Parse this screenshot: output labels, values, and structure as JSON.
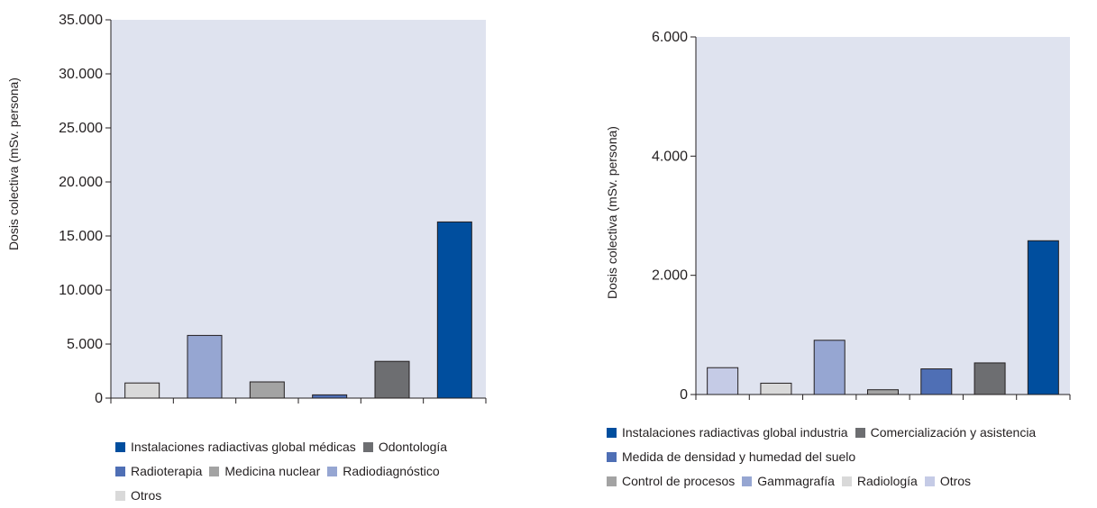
{
  "chart_data": [
    {
      "type": "bar",
      "ylabel": "Dosis colectiva (mSv. persona)",
      "ylim": [
        0,
        35000
      ],
      "y_ticks": [
        "0",
        "5.000",
        "10.000",
        "15.000",
        "20.000",
        "25.000",
        "30.000",
        "35.000"
      ],
      "plot_background": "#dfe3ef",
      "categories": [
        "Otros",
        "Radiodiagnóstico",
        "Medicina nuclear",
        "Radioterapia",
        "Odontología",
        "Instalaciones radiactivas global médicas"
      ],
      "values": [
        1400,
        5800,
        1500,
        300,
        3400,
        16300
      ],
      "colors": [
        "#d9d9d9",
        "#96a6d2",
        "#a3a3a3",
        "#4f6fb5",
        "#6d6e71",
        "#004e9e"
      ],
      "legend": [
        [
          "Instalaciones radiactivas global médicas",
          "Odontología"
        ],
        [
          "Radioterapia",
          "Medicina nuclear",
          "Radiodiagnóstico"
        ],
        [
          "Otros"
        ]
      ]
    },
    {
      "type": "bar",
      "ylabel": "Dosis colectiva (mSv. persona)",
      "ylim": [
        0,
        6000
      ],
      "y_ticks": [
        "0",
        "2.000",
        "4.000",
        "6.000"
      ],
      "plot_background": "#dfe3ef",
      "categories": [
        "Otros",
        "Radiología",
        "Gammagrafía",
        "Control de procesos",
        "Medida de densidad y humedad del suelo",
        "Comercialización y asistencia",
        "Instalaciones radiactivas global industria"
      ],
      "values": [
        450,
        190,
        910,
        80,
        430,
        530,
        2580
      ],
      "colors": [
        "#c5cbe6",
        "#d9d9d9",
        "#96a6d2",
        "#a3a3a3",
        "#4f6fb5",
        "#6d6e71",
        "#004e9e"
      ],
      "legend": [
        [
          "Instalaciones radiactivas global industria",
          "Comercialización y asistencia"
        ],
        [
          "Medida de densidad y humedad del suelo"
        ],
        [
          "Control de procesos",
          "Gammagrafía",
          "Radiología",
          "Otros"
        ]
      ]
    }
  ]
}
